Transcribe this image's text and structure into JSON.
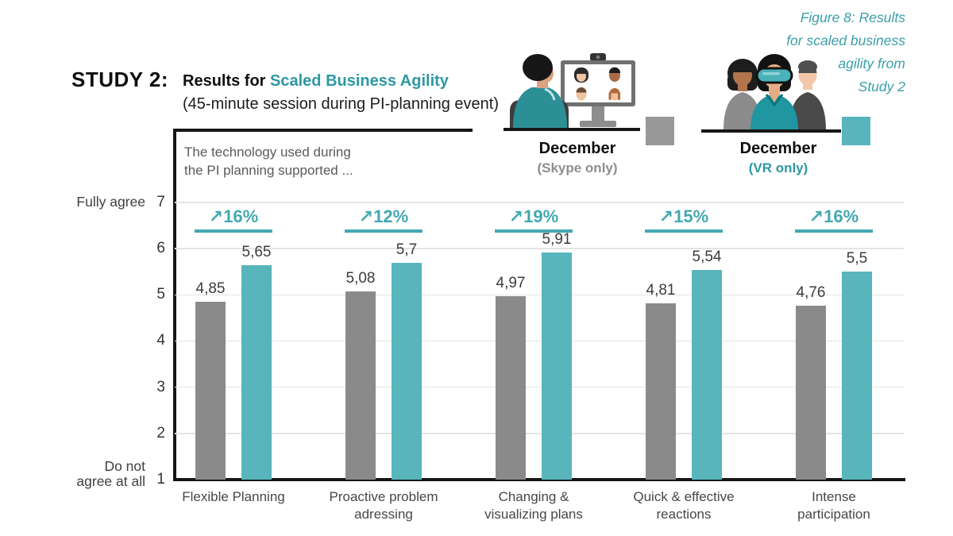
{
  "figure_caption": {
    "lines": [
      "Figure 8: Results",
      "for scaled business",
      "agility from",
      "Study 2"
    ]
  },
  "header": {
    "study_label": "STUDY 2:",
    "title_prefix": "Results for ",
    "title_highlight": "Scaled Business Agility",
    "subtitle": "(45-minute session during PI-planning event)"
  },
  "legend": {
    "skype": {
      "icon": "video-call-illustration",
      "title": "December",
      "subtitle": "(Skype only)",
      "swatch_color": "#999999"
    },
    "vr": {
      "icon": "vr-team-illustration",
      "title": "December",
      "subtitle": "(VR only)",
      "swatch_color": "#57b5bb"
    }
  },
  "chart_data": {
    "type": "bar",
    "question": "The technology used during\nthe PI planning supported ...",
    "y_axis": {
      "top_label": "Fully agree",
      "bottom_label": "Do not\nagree at all",
      "min": 1,
      "max": 7,
      "ticks": [
        7,
        6,
        5,
        4,
        3,
        2,
        1
      ],
      "grid": true
    },
    "categories": [
      "Flexible Planning",
      "Proactive problem\nadressing",
      "Changing &\nvisualizing plans",
      "Quick & effective\nreactions",
      "Intense\nparticipation"
    ],
    "series": [
      {
        "name": "December (Skype only)",
        "color": "#8a8a8a",
        "values": [
          4.85,
          5.08,
          4.97,
          4.81,
          4.76
        ],
        "labels": [
          "4,85",
          "5,08",
          "4,97",
          "4,81",
          "4,76"
        ]
      },
      {
        "name": "December (VR only)",
        "color": "#57b5bb",
        "values": [
          5.65,
          5.7,
          5.91,
          5.54,
          5.5
        ],
        "labels": [
          "5,65",
          "5,7",
          "5,91",
          "5,54",
          "5,5"
        ]
      }
    ],
    "improvements": [
      "↗16%",
      "↗12%",
      "↗19%",
      "↗15%",
      "↗16%"
    ],
    "improvement_arrow": "northeast-arrow-icon",
    "legend_position": "top",
    "colors": {
      "accent_teal": "#2e98a3",
      "bar_teal": "#57b5bb",
      "bar_gray": "#8a8a8a",
      "grid": "#e4e4e4",
      "axis": "#161616"
    }
  }
}
